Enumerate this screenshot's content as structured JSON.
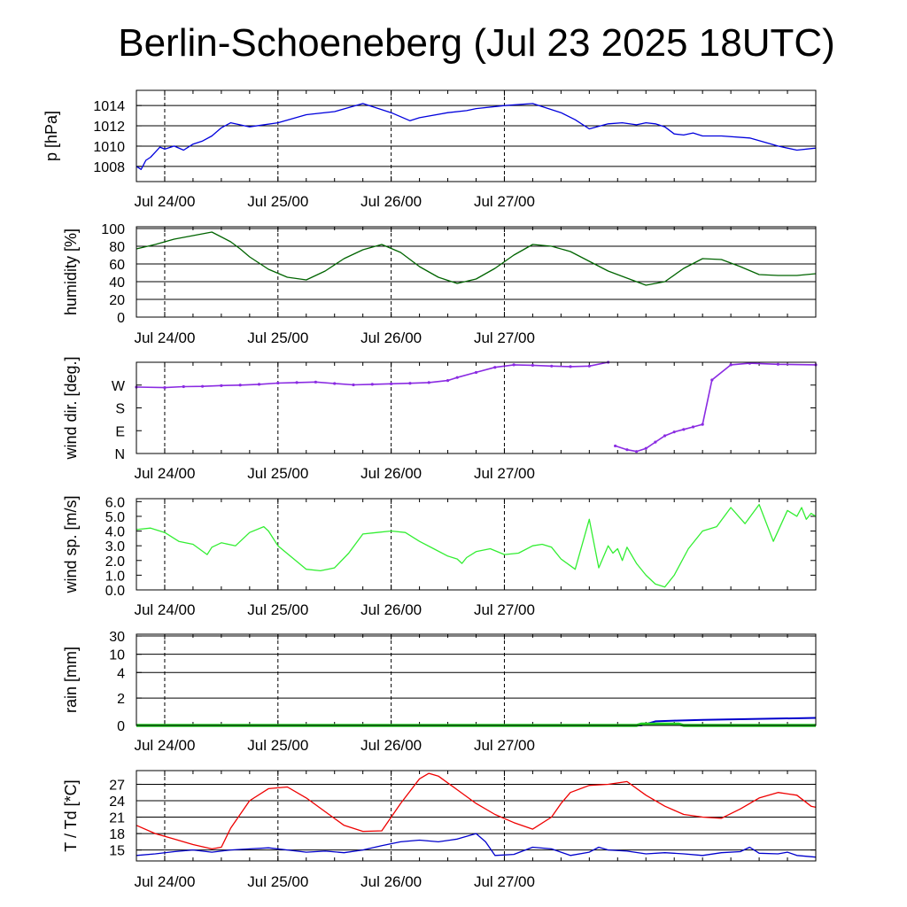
{
  "title": "Berlin-Schoeneberg (Jul 23 2025 18UTC)",
  "x_tick_labels": [
    "Jul 24/00",
    "Jul 25/00",
    "Jul 26/00",
    "Jul 27/00"
  ],
  "chart_data": [
    {
      "type": "line",
      "ylabel": "p [hPa]",
      "x_unit": "hours since Jul 23 18UTC",
      "ylim": [
        1006.5,
        1015.5
      ],
      "yticks": [
        1008,
        1010,
        1012,
        1014
      ],
      "grid": true,
      "series": [
        {
          "color": "#0000dd",
          "x": [
            0,
            1,
            2,
            3,
            4,
            5,
            6,
            8,
            10,
            12,
            14,
            16,
            18,
            20,
            24,
            30,
            36,
            42,
            48,
            54,
            58,
            60,
            66,
            70,
            72,
            78,
            84,
            90,
            93,
            96,
            100,
            103,
            106,
            108,
            110,
            112,
            114,
            116,
            118,
            120,
            124,
            130,
            136,
            140,
            144
          ],
          "y": [
            1008.0,
            1007.7,
            1008.6,
            1008.9,
            1009.4,
            1009.9,
            1009.7,
            1010.0,
            1009.6,
            1010.2,
            1010.5,
            1011.0,
            1011.8,
            1012.3,
            1011.9,
            1012.3,
            1013.1,
            1013.4,
            1014.2,
            1013.3,
            1012.5,
            1012.8,
            1013.3,
            1013.5,
            1013.7,
            1014.0,
            1014.2,
            1013.3,
            1012.6,
            1011.7,
            1012.2,
            1012.3,
            1012.1,
            1012.3,
            1012.2,
            1011.9,
            1011.2,
            1011.1,
            1011.3,
            1011.0,
            1011.0,
            1010.8,
            1010.0,
            1009.6,
            1009.8
          ]
        }
      ]
    },
    {
      "type": "line",
      "ylabel": "humidity [%]",
      "ylim": [
        0,
        102
      ],
      "yticks": [
        0,
        20,
        40,
        60,
        80,
        100
      ],
      "grid": true,
      "series": [
        {
          "color": "#006400",
          "x": [
            0,
            4,
            8,
            12,
            16,
            20,
            22,
            24,
            28,
            32,
            36,
            40,
            44,
            48,
            52,
            56,
            60,
            62,
            64,
            68,
            72,
            76,
            80,
            84,
            88,
            92,
            96,
            100,
            104,
            108,
            112,
            116,
            120,
            124,
            128,
            132,
            136,
            140,
            144
          ],
          "y": [
            77,
            82,
            88,
            92,
            96,
            85,
            77,
            68,
            54,
            45,
            42,
            52,
            66,
            76,
            82,
            73,
            57,
            51,
            45,
            38,
            43,
            55,
            70,
            82,
            80,
            74,
            63,
            52,
            44,
            36,
            40,
            55,
            66,
            65,
            57,
            48,
            47,
            47,
            49
          ]
        }
      ]
    },
    {
      "type": "scatter",
      "ylabel": "wind dir. [deg.]",
      "ylim": [
        0,
        360
      ],
      "yticks": [
        0,
        90,
        180,
        270
      ],
      "ytick_labels": [
        "N",
        "E",
        "S",
        "W"
      ],
      "grid": false,
      "series": [
        {
          "color": "#8a2be2",
          "x": [
            0,
            6,
            10,
            14,
            18,
            22,
            26,
            30,
            34,
            38,
            42,
            46,
            50,
            54,
            58,
            62,
            66,
            68,
            72,
            76,
            80,
            84,
            88,
            92,
            96,
            100,
            101.5,
            104,
            106,
            108,
            110,
            112,
            114,
            116,
            118,
            120,
            122,
            126,
            130,
            136,
            144
          ],
          "y": [
            262,
            260,
            264,
            265,
            268,
            270,
            273,
            278,
            280,
            282,
            276,
            271,
            273,
            275,
            277,
            280,
            288,
            300,
            320,
            340,
            350,
            348,
            345,
            343,
            345,
            360,
            30,
            15,
            8,
            20,
            45,
            70,
            85,
            95,
            105,
            115,
            290,
            350,
            356,
            352,
            350
          ]
        }
      ]
    },
    {
      "type": "line",
      "ylabel": "wind sp. [m/s]",
      "ylim": [
        0,
        6.2
      ],
      "yticks": [
        0,
        1,
        2,
        3,
        4,
        5,
        6
      ],
      "ytick_labels": [
        "0.0",
        "1.0",
        "2.0",
        "3.0",
        "4.0",
        "5.0",
        "6.0"
      ],
      "grid": false,
      "series": [
        {
          "color": "#33ee33",
          "x": [
            0,
            3,
            6,
            9,
            12,
            15,
            16,
            18,
            21,
            24,
            27,
            28,
            30,
            33,
            36,
            39,
            42,
            45,
            48,
            51,
            54,
            57,
            60,
            63,
            66,
            68,
            69,
            70,
            72,
            75,
            78,
            81,
            84,
            86,
            88,
            90,
            93,
            96,
            98,
            100,
            101,
            102,
            103,
            104,
            106,
            108,
            110,
            112,
            114,
            117,
            120,
            123,
            126,
            129,
            132,
            135,
            138,
            140,
            141,
            142,
            143,
            144
          ],
          "y": [
            4.1,
            4.2,
            3.9,
            3.3,
            3.1,
            2.4,
            2.9,
            3.2,
            3.0,
            3.9,
            4.3,
            4.0,
            3.0,
            2.2,
            1.4,
            1.3,
            1.5,
            2.5,
            3.8,
            3.9,
            4.0,
            3.9,
            3.3,
            2.8,
            2.3,
            2.1,
            1.8,
            2.2,
            2.6,
            2.8,
            2.4,
            2.5,
            3.0,
            3.1,
            2.9,
            2.1,
            1.4,
            4.8,
            1.5,
            3.0,
            2.5,
            2.8,
            2.0,
            2.9,
            1.8,
            1.0,
            0.4,
            0.2,
            1.0,
            2.8,
            4.0,
            4.3,
            5.6,
            4.5,
            5.8,
            3.3,
            5.4,
            5.0,
            5.6,
            4.8,
            5.2,
            5.0
          ]
        }
      ]
    },
    {
      "type": "area",
      "ylabel": "rain [mm]",
      "yscale": "nonlinear",
      "ylim": [
        0,
        30
      ],
      "yticks": [
        0,
        2,
        4,
        10,
        30
      ],
      "grid": true,
      "series": [
        {
          "color": "#0000cc",
          "x": [
            0,
            107,
            108,
            110,
            114,
            120,
            144
          ],
          "y": [
            0,
            0,
            0.1,
            0.3,
            0.35,
            0.4,
            0.55
          ]
        },
        {
          "color": "#22cc22",
          "x": [
            0,
            106,
            107,
            115,
            116,
            144
          ],
          "y": [
            0,
            0,
            0.1,
            0.1,
            0,
            0
          ]
        }
      ]
    },
    {
      "type": "line",
      "ylabel": "T / Td [*C]",
      "ylim": [
        13,
        29.5
      ],
      "yticks": [
        15,
        18,
        21,
        24,
        27
      ],
      "grid": true,
      "series": [
        {
          "color": "#ee0000",
          "x": [
            0,
            4,
            8,
            12,
            16,
            18,
            20,
            24,
            28,
            32,
            36,
            40,
            44,
            48,
            52,
            56,
            60,
            62,
            64,
            68,
            72,
            76,
            80,
            84,
            88,
            90,
            92,
            96,
            100,
            104,
            108,
            112,
            116,
            120,
            124,
            128,
            132,
            136,
            140,
            143,
            144
          ],
          "y": [
            19.5,
            18.0,
            17.0,
            16.0,
            15.2,
            15.5,
            19.0,
            24.0,
            26.2,
            26.5,
            24.5,
            22.0,
            19.5,
            18.4,
            18.5,
            23.5,
            28.0,
            29.0,
            28.5,
            26.0,
            23.5,
            21.5,
            20.0,
            18.8,
            21.0,
            23.5,
            25.5,
            26.8,
            27.0,
            27.5,
            25.0,
            23.0,
            21.5,
            21.0,
            20.8,
            22.5,
            24.5,
            25.5,
            25.0,
            23.0,
            22.8
          ]
        },
        {
          "color": "#0000cc",
          "x": [
            0,
            4,
            8,
            12,
            16,
            20,
            24,
            28,
            32,
            36,
            40,
            44,
            48,
            52,
            56,
            60,
            64,
            68,
            72,
            74,
            76,
            80,
            84,
            88,
            92,
            96,
            98,
            100,
            104,
            108,
            112,
            116,
            120,
            124,
            128,
            130,
            132,
            136,
            138,
            140,
            144
          ],
          "y": [
            14.0,
            14.3,
            14.7,
            15.0,
            14.6,
            15.0,
            15.2,
            15.4,
            15.0,
            14.6,
            14.8,
            14.5,
            15.0,
            15.8,
            16.5,
            16.8,
            16.5,
            17.0,
            18.0,
            16.5,
            14.0,
            14.2,
            15.5,
            15.2,
            14.0,
            14.6,
            15.5,
            15.0,
            14.8,
            14.3,
            14.5,
            14.3,
            14.0,
            14.5,
            14.7,
            15.5,
            14.4,
            14.3,
            14.6,
            14.0,
            13.7
          ]
        }
      ]
    }
  ]
}
